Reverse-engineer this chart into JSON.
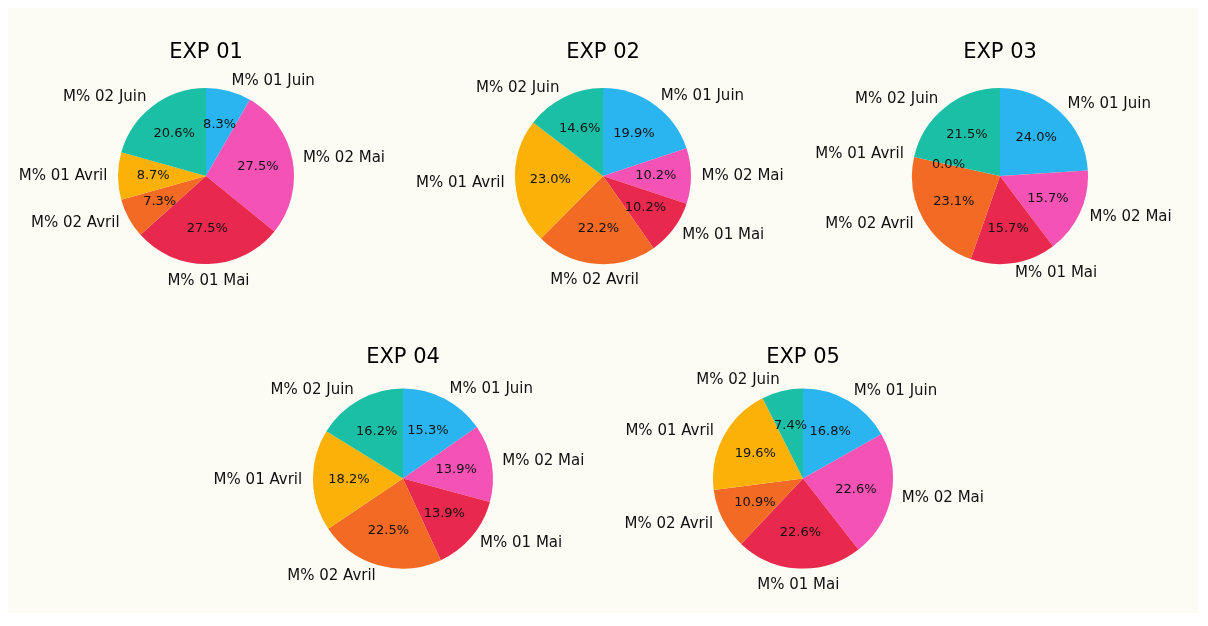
{
  "chart_data": [
    {
      "type": "pie",
      "title": "EXP 01",
      "categories": [
        "M% 01 Juin",
        "M% 02 Mai",
        "M% 01 Mai",
        "M% 02 Avril",
        "M% 01 Avril",
        "M% 02 Juin"
      ],
      "values": [
        8.3,
        27.5,
        27.5,
        7.3,
        8.7,
        20.6
      ],
      "value_labels": [
        "8.3%",
        "27.5%",
        "27.5%",
        "7.3%",
        "8.7%",
        "20.6%"
      ],
      "colors": [
        "#2bb5f0",
        "#f552b5",
        "#e8284c",
        "#f26a24",
        "#fbb107",
        "#1bbfa5"
      ]
    },
    {
      "type": "pie",
      "title": "EXP 02",
      "categories": [
        "M% 01 Juin",
        "M% 02 Mai",
        "M% 01 Mai",
        "M% 02 Avril",
        "M% 01 Avril",
        "M% 02 Juin"
      ],
      "values": [
        19.9,
        10.2,
        10.2,
        22.2,
        23.0,
        14.6
      ],
      "value_labels": [
        "19.9%",
        "10.2%",
        "10.2%",
        "22.2%",
        "23.0%",
        "14.6%"
      ],
      "colors": [
        "#2bb5f0",
        "#f552b5",
        "#e8284c",
        "#f26a24",
        "#fbb107",
        "#1bbfa5"
      ]
    },
    {
      "type": "pie",
      "title": "EXP 03",
      "categories": [
        "M% 01 Juin",
        "M% 02 Mai",
        "M% 01 Mai",
        "M% 02 Avril",
        "M% 01 Avril",
        "M% 02 Juin"
      ],
      "values": [
        24.0,
        15.7,
        15.7,
        23.1,
        0.0,
        21.5
      ],
      "value_labels": [
        "24.0%",
        "15.7%",
        "15.7%",
        "23.1%",
        "0.0%",
        "21.5%"
      ],
      "colors": [
        "#2bb5f0",
        "#f552b5",
        "#e8284c",
        "#f26a24",
        "#fbb107",
        "#1bbfa5"
      ]
    },
    {
      "type": "pie",
      "title": "EXP 04",
      "categories": [
        "M% 01 Juin",
        "M% 02 Mai",
        "M% 01 Mai",
        "M% 02 Avril",
        "M% 01 Avril",
        "M% 02 Juin"
      ],
      "values": [
        15.3,
        13.9,
        13.9,
        22.5,
        18.2,
        16.2
      ],
      "value_labels": [
        "15.3%",
        "13.9%",
        "13.9%",
        "22.5%",
        "18.2%",
        "16.2%"
      ],
      "colors": [
        "#2bb5f0",
        "#f552b5",
        "#e8284c",
        "#f26a24",
        "#fbb107",
        "#1bbfa5"
      ]
    },
    {
      "type": "pie",
      "title": "EXP 05",
      "categories": [
        "M% 01 Juin",
        "M% 02 Mai",
        "M% 01 Mai",
        "M% 02 Avril",
        "M% 01 Avril",
        "M% 02 Juin"
      ],
      "values": [
        16.8,
        22.6,
        22.6,
        10.9,
        19.6,
        7.4
      ],
      "value_labels": [
        "16.8%",
        "22.6%",
        "22.6%",
        "10.9%",
        "19.6%",
        "7.4%"
      ],
      "colors": [
        "#2bb5f0",
        "#f552b5",
        "#e8284c",
        "#f26a24",
        "#fbb107",
        "#1bbfa5"
      ]
    }
  ]
}
